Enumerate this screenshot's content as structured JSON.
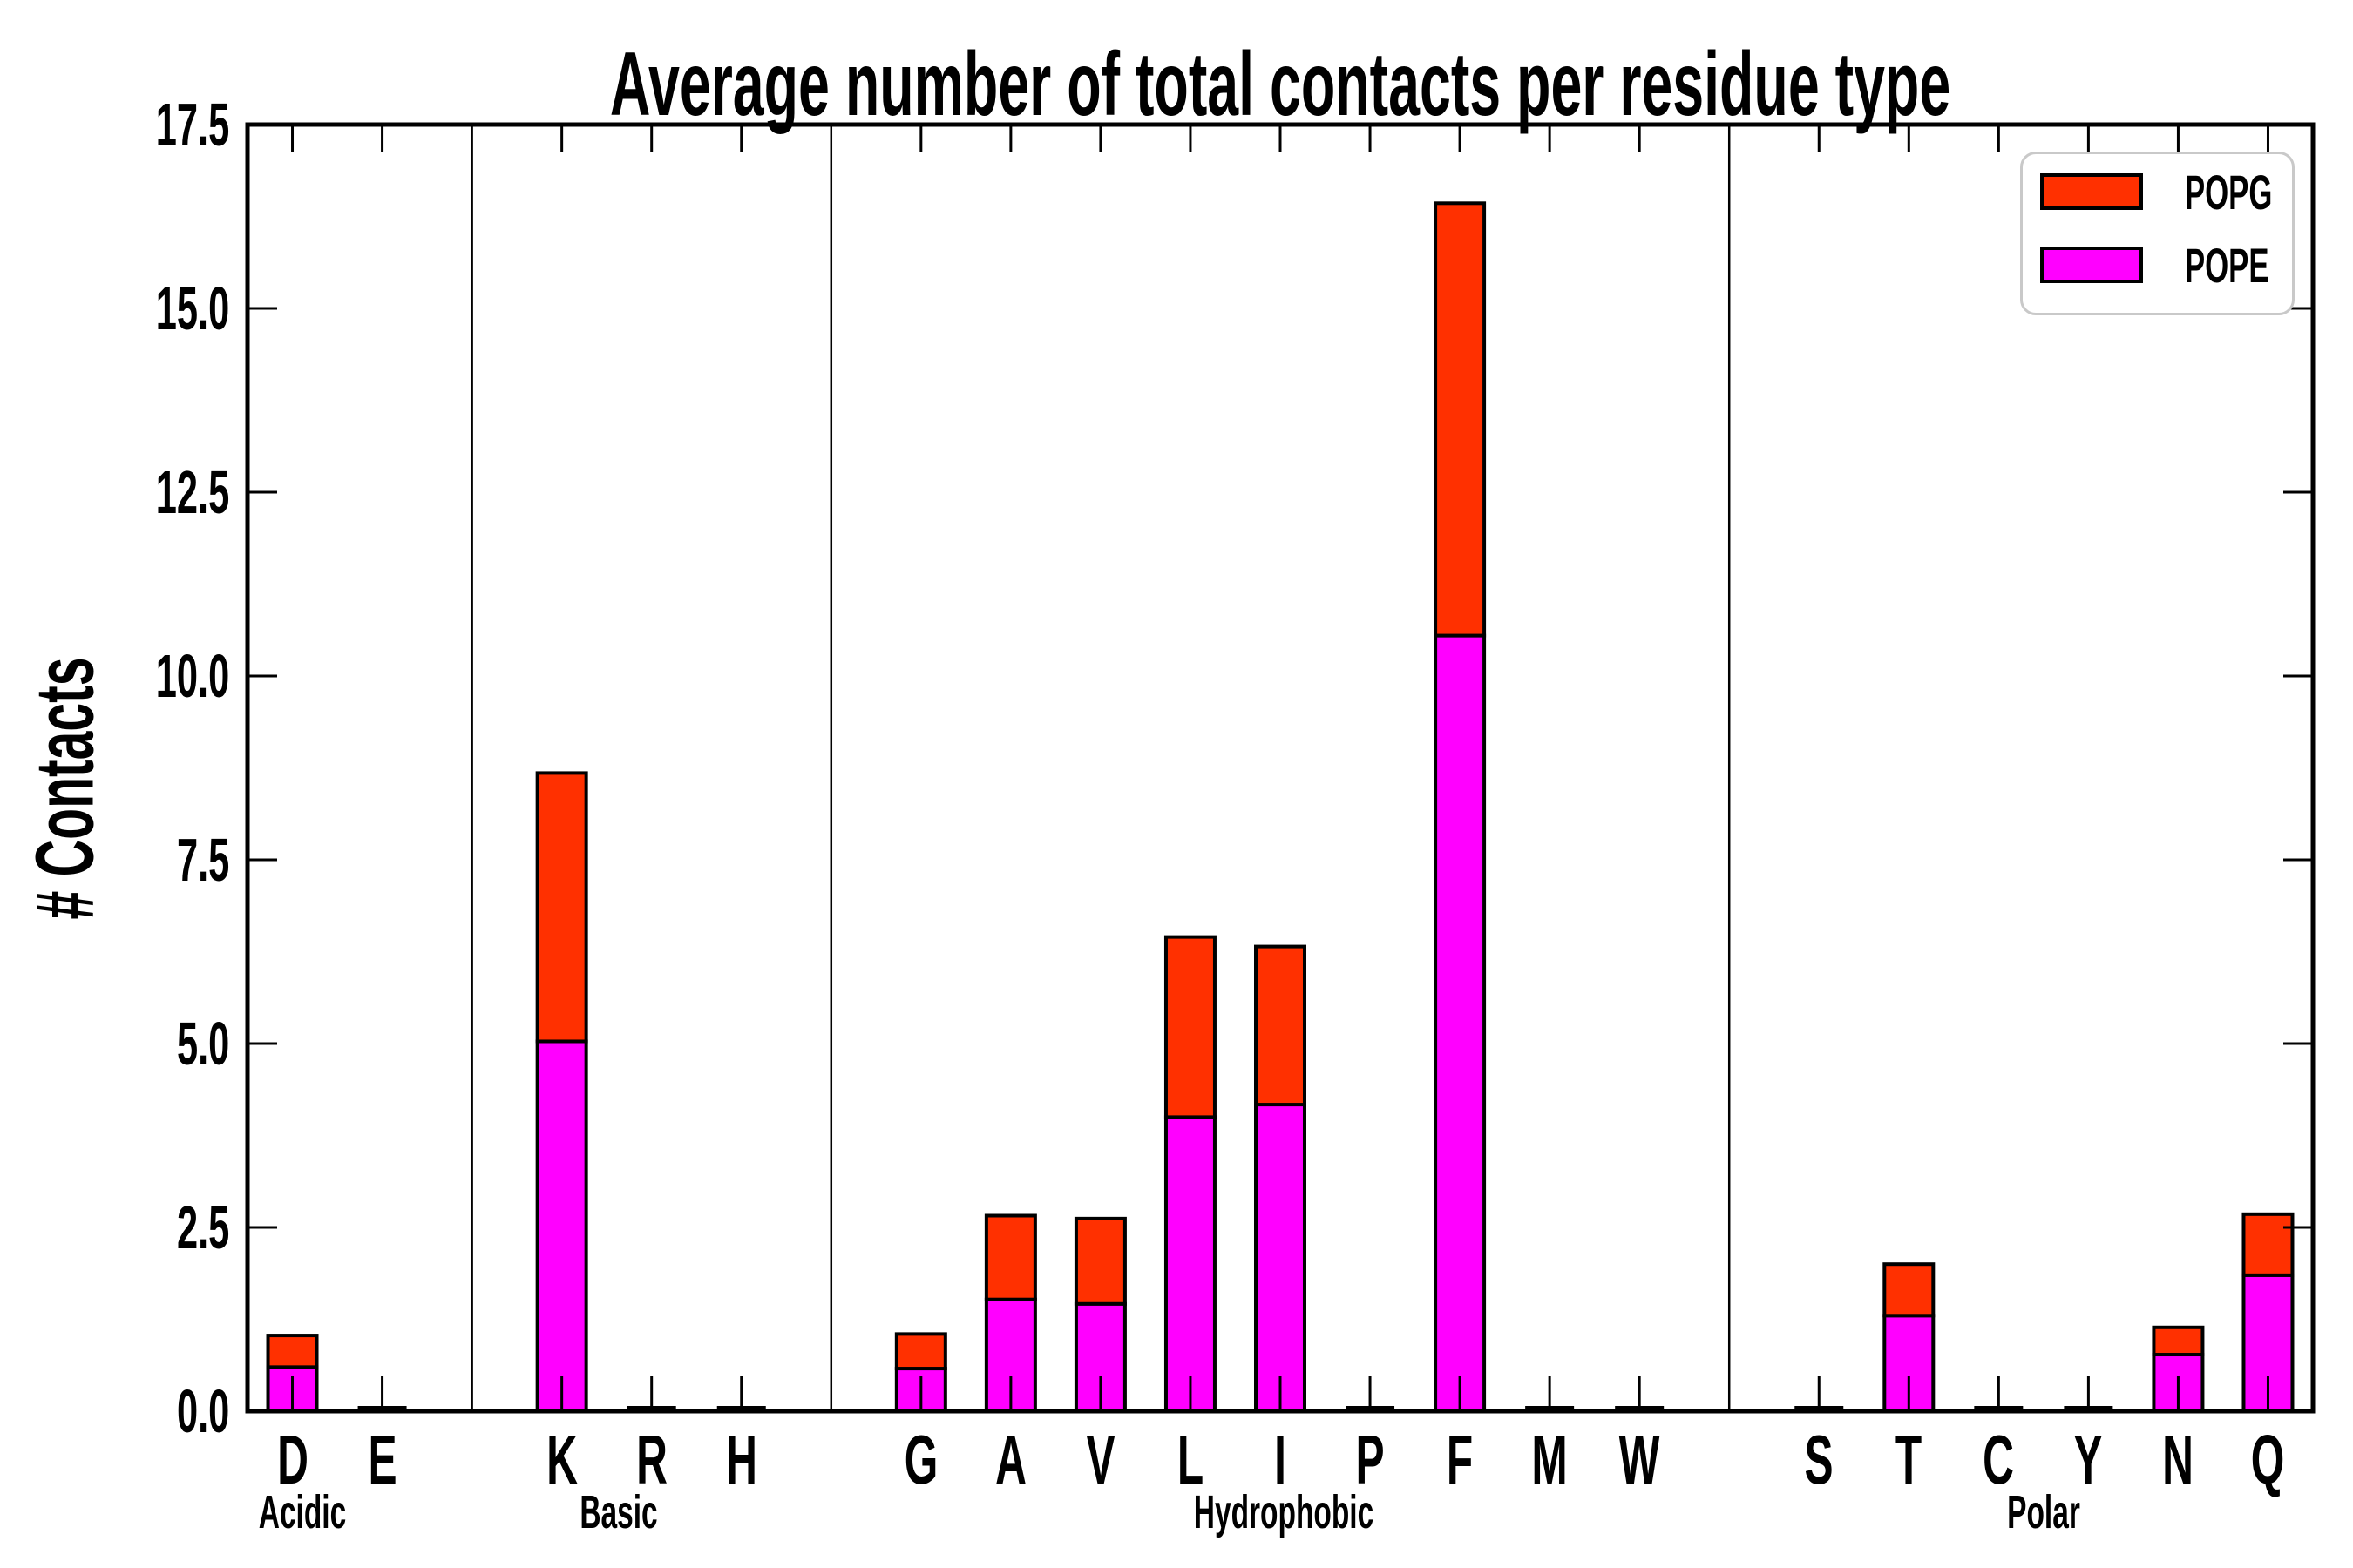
{
  "chart_data": {
    "type": "bar",
    "stacked": true,
    "title": "Average number of total contacts per residue type",
    "ylabel": "# Contacts",
    "xlabel": "",
    "ylim": [
      0,
      17.5
    ],
    "ytick_step": 2.5,
    "ytick_labels": [
      "0.0",
      "2.5",
      "5.0",
      "7.5",
      "10.0",
      "12.5",
      "15.0",
      "17.5"
    ],
    "grid": false,
    "legend": {
      "position": "upper-right",
      "entries": [
        "POPG",
        "POPE"
      ]
    },
    "series": [
      {
        "name": "POPG",
        "color": "#ff3000"
      },
      {
        "name": "POPE",
        "color": "#ff00ff"
      }
    ],
    "stack_order_bottom_to_top": [
      "POPE",
      "POPG"
    ],
    "groups": [
      {
        "label": "Acidic",
        "categories": [
          "D",
          "E"
        ],
        "POPE": [
          0.6,
          0
        ],
        "POPG": [
          0.43,
          0
        ]
      },
      {
        "label": "Basic",
        "categories": [
          "K",
          "R",
          "H"
        ],
        "POPE": [
          5.03,
          0,
          0
        ],
        "POPG": [
          3.65,
          0,
          0
        ]
      },
      {
        "label": "Hydrophobic",
        "categories": [
          "G",
          "A",
          "V",
          "L",
          "I",
          "P",
          "F",
          "M",
          "W"
        ],
        "POPE": [
          0.58,
          1.52,
          1.46,
          4.0,
          4.17,
          0,
          10.55,
          0,
          0
        ],
        "POPG": [
          0.47,
          1.14,
          1.16,
          2.45,
          2.15,
          0,
          5.88,
          0,
          0
        ]
      },
      {
        "label": "Polar",
        "categories": [
          "S",
          "T",
          "C",
          "Y",
          "N",
          "Q"
        ],
        "POPE": [
          0,
          1.3,
          0,
          0,
          0.77,
          1.85
        ],
        "POPG": [
          0,
          0.7,
          0,
          0,
          0.37,
          0.83
        ]
      }
    ]
  }
}
